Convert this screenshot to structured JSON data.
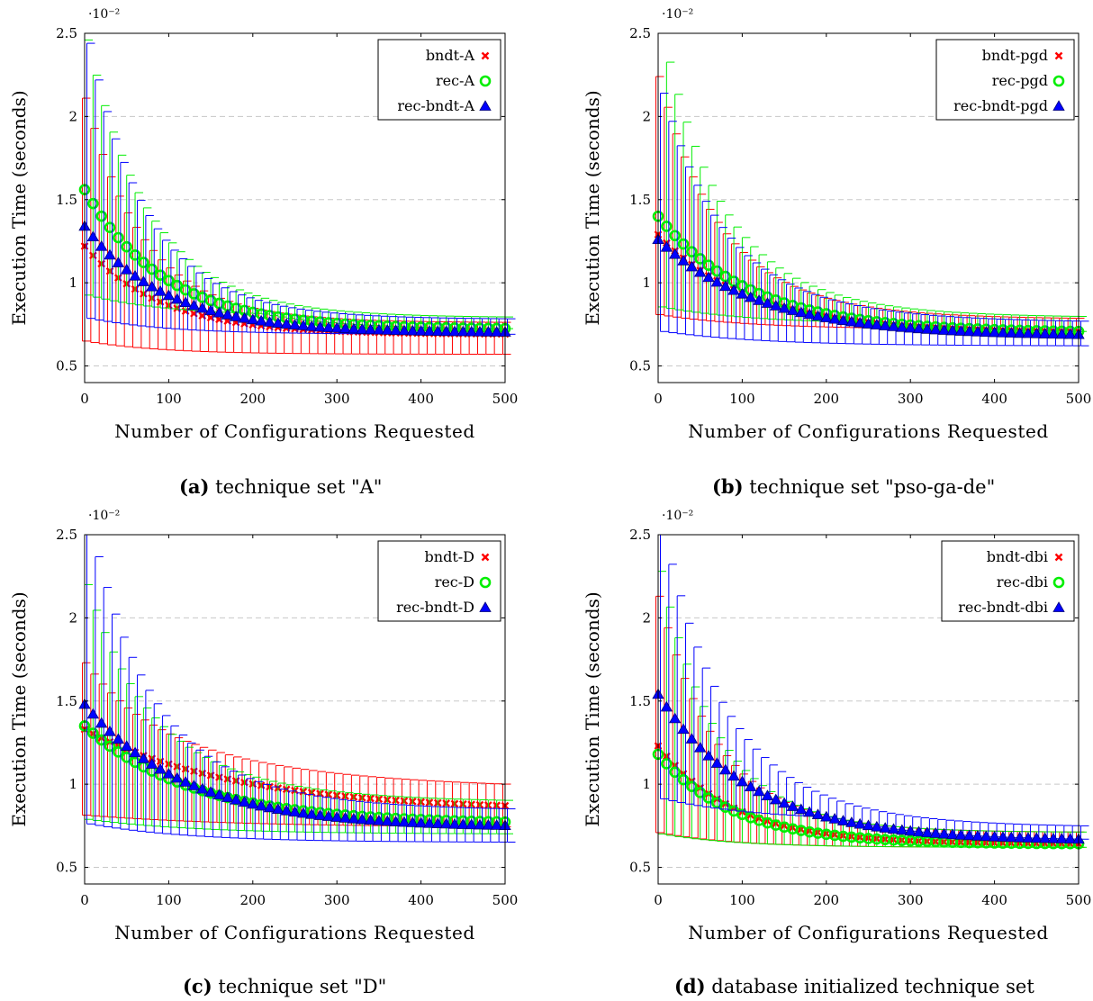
{
  "chart_data": [
    {
      "type": "scatter",
      "panel_label": "(a)",
      "caption": "technique set \"A\"",
      "xlabel": "Number of Configurations Requested",
      "ylabel": "Execution Time (seconds)",
      "y_multiplier": "·10⁻²",
      "xlim": [
        0,
        500
      ],
      "ylim": [
        0.4,
        2.5
      ],
      "xticks": [
        "0",
        "100",
        "200",
        "300",
        "400",
        "500"
      ],
      "yticks": [
        "0.5",
        "1",
        "1.5",
        "2",
        "2.5"
      ],
      "grid": "horizontal dashed",
      "legend_position": "top-right",
      "series": [
        {
          "name": "bndt-A",
          "marker": "x",
          "color": "#ff0000",
          "start": 1.22,
          "end": 0.69,
          "decay": 90,
          "err_up_start": 0.89,
          "err_up_end": 0.07,
          "err_low": 0.57
        },
        {
          "name": "rec-A",
          "marker": "o",
          "color": "#00ee00",
          "start": 1.56,
          "end": 0.72,
          "decay": 95,
          "err_up_start": 0.9,
          "err_up_end": 0.07,
          "err_low": 0.8
        },
        {
          "name": "rec-bndt-A",
          "marker": "triangle",
          "color": "#0000ff",
          "start": 1.34,
          "end": 0.7,
          "decay": 95,
          "err_up_start": 1.1,
          "err_up_end": 0.08,
          "err_low": 0.69
        }
      ]
    },
    {
      "type": "scatter",
      "panel_label": "(b)",
      "caption": "technique set \"pso-ga-de\"",
      "xlabel": "Number of Configurations Requested",
      "ylabel": "Execution Time (seconds)",
      "y_multiplier": "·10⁻²",
      "xlim": [
        0,
        500
      ],
      "ylim": [
        0.4,
        2.5
      ],
      "xticks": [
        "0",
        "100",
        "200",
        "300",
        "400",
        "500"
      ],
      "yticks": [
        "0.5",
        "1",
        "1.5",
        "2",
        "2.5"
      ],
      "grid": "horizontal dashed",
      "legend_position": "top-right",
      "series": [
        {
          "name": "bndt-pgd",
          "marker": "x",
          "color": "#ff0000",
          "start": 1.29,
          "end": 0.7,
          "decay": 110,
          "err_up_start": 0.95,
          "err_up_end": 0.08,
          "err_low": 0.72
        },
        {
          "name": "rec-pgd",
          "marker": "o",
          "color": "#00ee00",
          "start": 1.4,
          "end": 0.7,
          "decay": 110,
          "err_up_start": 1.15,
          "err_up_end": 0.09,
          "err_low": 0.75
        },
        {
          "name": "rec-bndt-pgd",
          "marker": "triangle",
          "color": "#0000ff",
          "start": 1.26,
          "end": 0.68,
          "decay": 120,
          "err_up_start": 0.88,
          "err_up_end": 0.08,
          "err_low": 0.62
        }
      ]
    },
    {
      "type": "scatter",
      "panel_label": "(c)",
      "caption": "technique set \"D\"",
      "xlabel": "Number of Configurations Requested",
      "ylabel": "Execution Time (seconds)",
      "y_multiplier": "·10⁻²",
      "xlim": [
        0,
        500
      ],
      "ylim": [
        0.4,
        2.5
      ],
      "xticks": [
        "0",
        "100",
        "200",
        "300",
        "400",
        "500"
      ],
      "yticks": [
        "0.5",
        "1",
        "1.5",
        "2",
        "2.5"
      ],
      "grid": "horizontal dashed",
      "legend_position": "top-right",
      "series": [
        {
          "name": "bndt-D",
          "marker": "x",
          "color": "#ff0000",
          "start": 1.33,
          "end": 0.84,
          "decay": 180,
          "err_up_start": 0.4,
          "err_up_end": 0.13,
          "err_low": 0.74
        },
        {
          "name": "rec-D",
          "marker": "o",
          "color": "#00ee00",
          "start": 1.35,
          "end": 0.76,
          "decay": 130,
          "err_up_start": 0.85,
          "err_up_end": 0.13,
          "err_low": 0.7
        },
        {
          "name": "rec-bndt-D",
          "marker": "triangle",
          "color": "#0000ff",
          "start": 1.48,
          "end": 0.74,
          "decay": 120,
          "err_up_start": 1.1,
          "err_up_end": 0.1,
          "err_low": 0.65
        }
      ]
    },
    {
      "type": "scatter",
      "panel_label": "(d)",
      "caption": "database initialized technique set",
      "xlabel": "Number of Configurations Requested",
      "ylabel": "Execution Time (seconds)",
      "y_multiplier": "·10⁻²",
      "xlim": [
        0,
        500
      ],
      "ylim": [
        0.4,
        2.5
      ],
      "xticks": [
        "0",
        "100",
        "200",
        "300",
        "400",
        "500"
      ],
      "yticks": [
        "0.5",
        "1",
        "1.5",
        "2",
        "2.5"
      ],
      "grid": "horizontal dashed",
      "legend_position": "top-right",
      "series": [
        {
          "name": "bndt-dbi",
          "marker": "x",
          "color": "#ff0000",
          "start": 1.23,
          "end": 0.64,
          "decay": 90,
          "err_up_start": 0.9,
          "err_up_end": 0.07,
          "err_low": 0.62
        },
        {
          "name": "rec-dbi",
          "marker": "o",
          "color": "#00ee00",
          "start": 1.18,
          "end": 0.64,
          "decay": 90,
          "err_up_start": 1.1,
          "err_up_end": 0.07,
          "err_low": 0.62
        },
        {
          "name": "rec-bndt-dbi",
          "marker": "triangle",
          "color": "#0000ff",
          "start": 1.54,
          "end": 0.66,
          "decay": 110,
          "err_up_start": 1.0,
          "err_up_end": 0.08,
          "err_low": 0.78
        }
      ]
    }
  ]
}
